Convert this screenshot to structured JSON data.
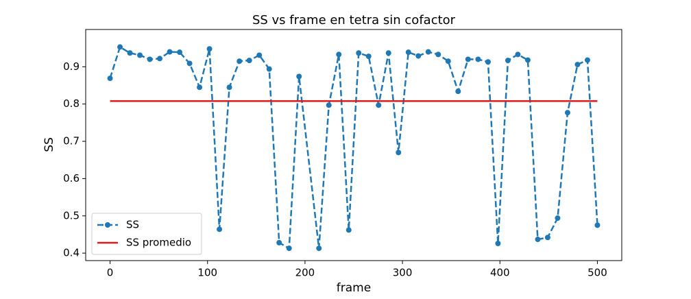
{
  "chart_data": {
    "type": "line",
    "title": "SS vs frame en tetra sin cofactor",
    "xlabel": "frame",
    "ylabel": "SS",
    "series": [
      {
        "name": "SS",
        "color": "#1f77b4",
        "linestyle": "dashed",
        "marker": true,
        "x": [
          0,
          10.2,
          20.4,
          30.6,
          40.8,
          51,
          61.2,
          71.4,
          81.6,
          91.8,
          102,
          112.2,
          122.4,
          132.7,
          142.9,
          153.1,
          163.3,
          173.5,
          183.7,
          193.9,
          214.3,
          224.5,
          234.7,
          244.9,
          255.1,
          265.3,
          275.5,
          285.7,
          295.9,
          306.1,
          316.3,
          326.5,
          336.7,
          346.9,
          357.1,
          367.3,
          377.6,
          387.8,
          398,
          408.2,
          418.4,
          428.6,
          438.8,
          449,
          459.2,
          469.4,
          479.6,
          489.8,
          500
        ],
        "values": [
          0.869,
          0.953,
          0.937,
          0.931,
          0.92,
          0.922,
          0.94,
          0.939,
          0.909,
          0.845,
          0.948,
          0.464,
          0.845,
          0.915,
          0.917,
          0.931,
          0.894,
          0.428,
          0.413,
          0.874,
          0.413,
          0.797,
          0.933,
          0.462,
          0.937,
          0.928,
          0.797,
          0.937,
          0.67,
          0.939,
          0.929,
          0.94,
          0.933,
          0.915,
          0.834,
          0.92,
          0.92,
          0.913,
          0.426,
          0.917,
          0.933,
          0.918,
          0.437,
          0.442,
          0.494,
          0.777,
          0.906,
          0.918,
          0.475
        ]
      },
      {
        "name": "SS promedio",
        "color": "#e31a1c",
        "linestyle": "solid",
        "marker": false,
        "x": [
          0,
          500
        ],
        "values": [
          0.808,
          0.808
        ]
      }
    ],
    "xlim": [
      -25,
      525
    ],
    "xticks": [
      0,
      100,
      200,
      300,
      400,
      500
    ],
    "ylim": [
      0.38,
      1.0
    ],
    "yticks": [
      0.4,
      0.5,
      0.6,
      0.7,
      0.8,
      0.9
    ],
    "legend": "lower left"
  }
}
